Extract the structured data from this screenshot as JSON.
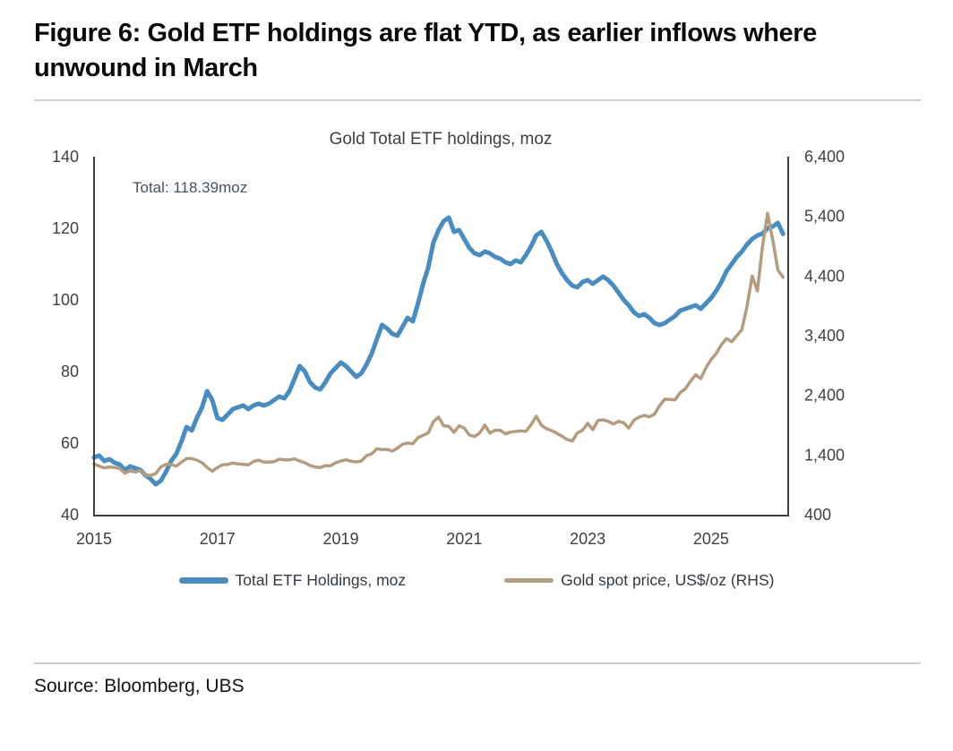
{
  "figure": {
    "title": "Figure 6: Gold ETF holdings are flat YTD, as earlier inflows where unwound in March",
    "source": "Source: Bloomberg, UBS"
  },
  "colors": {
    "etf_line": "#4a8cbe",
    "gold_line": "#b49c80",
    "axis": "#3d3d3d",
    "tick_text": "#404040",
    "divider": "#cfcfcf"
  },
  "chart_data": {
    "type": "line",
    "title": "Gold Total ETF holdings, moz",
    "annotation": "Total: 118.39moz",
    "grid": false,
    "legend_position": "bottom",
    "x_start": 2015.0,
    "x_step": 0.0833333,
    "x_end_scale": 2026.25,
    "x_ticks": [
      2015,
      2017,
      2019,
      2021,
      2023,
      2025
    ],
    "left_axis": {
      "label": "ETF holdings, moz",
      "min": 40,
      "max": 140,
      "ticks": [
        40,
        60,
        80,
        100,
        120,
        140
      ]
    },
    "right_axis": {
      "label": "Gold spot price, US$/oz",
      "min": 400,
      "max": 6400,
      "ticks": [
        "400",
        "1,400",
        "2,400",
        "3,400",
        "4,400",
        "5,400",
        "6,400"
      ]
    },
    "series": [
      {
        "name": "Total ETF Holdings, moz",
        "axis": "left",
        "color": "#4a8cbe",
        "stroke_width": 5,
        "values": [
          56.0,
          56.5,
          55.0,
          55.5,
          54.5,
          54.0,
          52.5,
          53.5,
          53.0,
          52.5,
          51.0,
          50.0,
          48.5,
          49.5,
          52.0,
          55.0,
          57.0,
          60.5,
          64.5,
          63.5,
          67.0,
          70.0,
          74.5,
          72.0,
          67.0,
          66.5,
          68.0,
          69.5,
          70.0,
          70.5,
          69.5,
          70.5,
          71.0,
          70.5,
          71.0,
          72.0,
          73.0,
          72.5,
          74.5,
          78.0,
          81.5,
          80.0,
          77.0,
          75.5,
          75.0,
          77.0,
          79.5,
          81.0,
          82.5,
          81.5,
          80.0,
          78.5,
          79.5,
          82.0,
          85.0,
          89.0,
          93.0,
          92.0,
          90.5,
          90.0,
          92.5,
          95.0,
          94.0,
          99.0,
          104.5,
          109.0,
          116.0,
          119.5,
          122.0,
          123.0,
          119.0,
          119.5,
          117.0,
          114.5,
          113.0,
          112.5,
          113.5,
          113.0,
          112.0,
          111.5,
          110.5,
          110.0,
          111.0,
          110.5,
          112.5,
          115.0,
          118.0,
          119.0,
          116.5,
          113.5,
          110.0,
          107.5,
          105.5,
          104.0,
          103.5,
          105.0,
          105.5,
          104.5,
          105.5,
          106.5,
          105.5,
          104.0,
          102.0,
          100.0,
          98.5,
          96.5,
          95.5,
          96.0,
          95.0,
          93.5,
          93.0,
          93.5,
          94.5,
          95.5,
          97.0,
          97.5,
          98.0,
          98.5,
          97.5,
          99.0,
          100.5,
          102.5,
          105.0,
          108.0,
          110.0,
          112.0,
          113.5,
          115.5,
          117.0,
          118.0,
          118.5,
          120.0,
          120.5,
          121.5,
          118.39
        ]
      },
      {
        "name": "Gold spot price, US$/oz (RHS)",
        "axis": "right",
        "color": "#b49c80",
        "stroke_width": 3.5,
        "values": [
          1250,
          1215,
          1185,
          1200,
          1190,
          1175,
          1095,
          1135,
          1115,
          1140,
          1065,
          1055,
          1090,
          1200,
          1245,
          1240,
          1215,
          1280,
          1340,
          1340,
          1315,
          1270,
          1190,
          1130,
          1190,
          1235,
          1245,
          1265,
          1250,
          1245,
          1235,
          1290,
          1315,
          1280,
          1280,
          1290,
          1330,
          1320,
          1320,
          1335,
          1300,
          1270,
          1225,
          1200,
          1190,
          1220,
          1220,
          1270,
          1300,
          1320,
          1295,
          1285,
          1300,
          1390,
          1420,
          1505,
          1490,
          1495,
          1465,
          1515,
          1580,
          1600,
          1590,
          1690,
          1730,
          1770,
          1960,
          2035,
          1890,
          1880,
          1780,
          1890,
          1850,
          1735,
          1710,
          1770,
          1900,
          1770,
          1815,
          1815,
          1755,
          1785,
          1795,
          1805,
          1795,
          1910,
          2050,
          1900,
          1840,
          1810,
          1765,
          1715,
          1660,
          1635,
          1770,
          1815,
          1930,
          1825,
          1980,
          1990,
          1965,
          1920,
          1965,
          1940,
          1850,
          1985,
          2035,
          2065,
          2040,
          2085,
          2230,
          2335,
          2330,
          2325,
          2445,
          2510,
          2635,
          2745,
          2680,
          2860,
          3000,
          3100,
          3250,
          3350,
          3300,
          3400,
          3500,
          3900,
          4400,
          4150,
          4900,
          5450,
          5000,
          4500,
          4380
        ]
      }
    ]
  }
}
